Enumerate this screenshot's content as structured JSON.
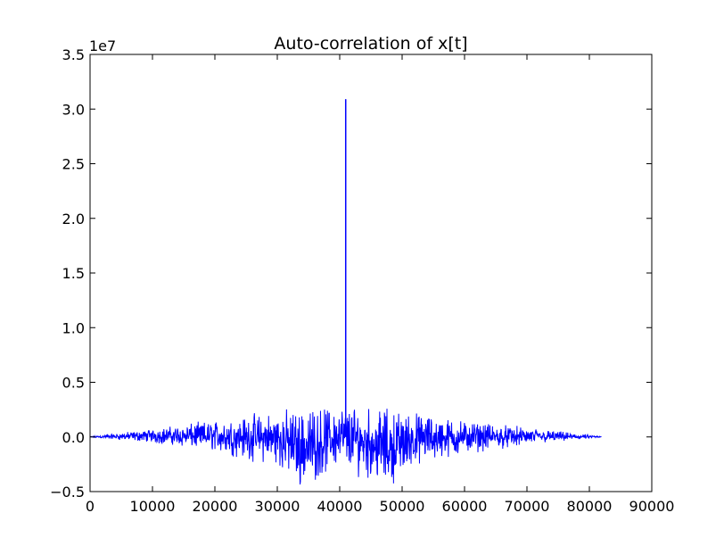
{
  "chart_data": {
    "type": "line",
    "title": "Auto-correlation of x[t]",
    "xlabel": "",
    "ylabel": "",
    "y_offset_label": "1e7",
    "xlim": [
      0,
      90000
    ],
    "ylim": [
      -0.5,
      3.5
    ],
    "y_units": "1e7",
    "grid": false,
    "legend": "none",
    "x_ticks": [
      "0",
      "10000",
      "20000",
      "30000",
      "40000",
      "50000",
      "60000",
      "70000",
      "80000",
      "90000"
    ],
    "x_tick_values": [
      0,
      10000,
      20000,
      30000,
      40000,
      50000,
      60000,
      70000,
      80000,
      90000
    ],
    "y_ticks": [
      "−0.5",
      "0.0",
      "0.5",
      "1.0",
      "1.5",
      "2.0",
      "2.5",
      "3.0",
      "3.5"
    ],
    "y_tick_values": [
      -0.5,
      0.0,
      0.5,
      1.0,
      1.5,
      2.0,
      2.5,
      3.0,
      3.5
    ],
    "series": [
      {
        "color": "#0000ff",
        "x_range": [
          0,
          81920
        ],
        "peak": {
          "x": 40960,
          "y": 3.09
        },
        "noise_envelope": [
          {
            "x": 0,
            "y_min": -0.005,
            "y_max": 0.005
          },
          {
            "x": 10000,
            "y_min": -0.06,
            "y_max": 0.08
          },
          {
            "x": 20000,
            "y_min": -0.15,
            "y_max": 0.17
          },
          {
            "x": 30000,
            "y_min": -0.3,
            "y_max": 0.27
          },
          {
            "x": 34000,
            "y_min": -0.5,
            "y_max": 0.3
          },
          {
            "x": 40000,
            "y_min": -0.3,
            "y_max": 0.32
          },
          {
            "x": 48000,
            "y_min": -0.5,
            "y_max": 0.3
          },
          {
            "x": 52000,
            "y_min": -0.28,
            "y_max": 0.25
          },
          {
            "x": 62000,
            "y_min": -0.15,
            "y_max": 0.15
          },
          {
            "x": 72000,
            "y_min": -0.07,
            "y_max": 0.08
          },
          {
            "x": 81920,
            "y_min": -0.005,
            "y_max": 0.005
          }
        ]
      }
    ]
  }
}
